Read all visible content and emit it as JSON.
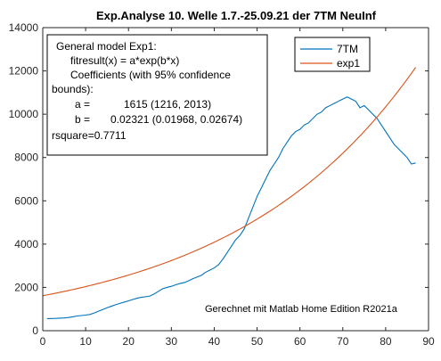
{
  "chart_data": {
    "type": "line",
    "title": "Exp.Analyse 10. Welle 1.7.-25.09.21 der 7TM NeuInf",
    "xlabel": "",
    "ylabel": "",
    "xlim": [
      0,
      90
    ],
    "ylim": [
      0,
      14000
    ],
    "x_ticks": [
      "0",
      "10",
      "20",
      "30",
      "40",
      "50",
      "60",
      "70",
      "80",
      "90"
    ],
    "y_ticks": [
      "0",
      "2000",
      "4000",
      "6000",
      "8000",
      "10000",
      "12000",
      "14000"
    ],
    "grid": false,
    "legend_position": "top-right",
    "fit_box": {
      "lines": [
        "General model Exp1:",
        "fitresult(x) = a*exp(b*x)",
        "Coefficients (with 95% confidence",
        "bounds):",
        "a =",
        "1615  (1216, 2013)",
        "b =",
        "0.02321  (0.01968, 0.02674)",
        "rsquare=0.7711"
      ]
    },
    "annotation": "Gerechnet mit Matlab Home Edition R2021a",
    "series": [
      {
        "name": "7TM",
        "color": "#0072BD",
        "x": [
          1,
          2,
          3,
          4,
          5,
          6,
          7,
          8,
          9,
          10,
          11,
          12,
          13,
          14,
          15,
          16,
          17,
          18,
          19,
          20,
          21,
          22,
          23,
          24,
          25,
          26,
          27,
          28,
          29,
          30,
          31,
          32,
          33,
          34,
          35,
          36,
          37,
          38,
          39,
          40,
          41,
          42,
          43,
          44,
          45,
          46,
          47,
          48,
          49,
          50,
          51,
          52,
          53,
          54,
          55,
          56,
          57,
          58,
          59,
          60,
          61,
          62,
          63,
          64,
          65,
          66,
          67,
          68,
          69,
          70,
          71,
          72,
          73,
          74,
          75,
          76,
          77,
          78,
          79,
          80,
          81,
          82,
          83,
          84,
          85,
          86,
          87
        ],
        "values": [
          560,
          565,
          570,
          580,
          590,
          610,
          640,
          680,
          700,
          720,
          750,
          820,
          900,
          980,
          1060,
          1130,
          1200,
          1260,
          1320,
          1380,
          1440,
          1500,
          1540,
          1570,
          1600,
          1700,
          1820,
          1940,
          2000,
          2050,
          2120,
          2180,
          2220,
          2300,
          2400,
          2480,
          2560,
          2700,
          2800,
          2900,
          3050,
          3300,
          3600,
          3900,
          4200,
          4400,
          4700,
          5200,
          5700,
          6200,
          6600,
          7000,
          7400,
          7700,
          8000,
          8400,
          8700,
          9000,
          9200,
          9300,
          9500,
          9600,
          9800,
          10000,
          10100,
          10300,
          10400,
          10500,
          10600,
          10700,
          10800,
          10700,
          10600,
          10300,
          10400,
          10200,
          10000,
          9800,
          9500,
          9200,
          8900,
          8600,
          8400,
          8200,
          8000,
          7700,
          7750
        ]
      },
      {
        "name": "exp1",
        "color": "#D95319",
        "formula": "1615*exp(0.02321*x)",
        "a": 1615,
        "b": 0.02321,
        "x_range": [
          0,
          87
        ]
      }
    ]
  }
}
